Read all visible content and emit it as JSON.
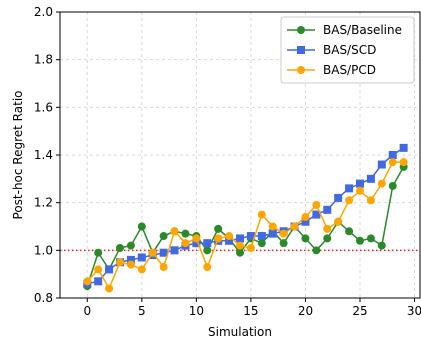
{
  "chart_data": {
    "type": "line",
    "xlabel": "Simulation",
    "ylabel": "Post-hoc Regret Ratio",
    "xlim": [
      -2.5,
      30.5
    ],
    "ylim": [
      0.8,
      2.0
    ],
    "xticks": [
      0,
      5,
      10,
      15,
      20,
      25,
      30
    ],
    "yticks": [
      0.8,
      1.0,
      1.2,
      1.4,
      1.6,
      1.8,
      2.0
    ],
    "xtick_labels": [
      "0",
      "5",
      "10",
      "15",
      "20",
      "25",
      "30"
    ],
    "ytick_labels": [
      "0.8",
      "1.0",
      "1.2",
      "1.4",
      "1.6",
      "1.8",
      "2.0"
    ],
    "grid": true,
    "legend_position": "top-right",
    "reference_line": {
      "y": 1.0,
      "color": "#e8212f",
      "style": "dotted"
    },
    "x": [
      0,
      1,
      2,
      3,
      4,
      5,
      6,
      7,
      8,
      9,
      10,
      11,
      12,
      13,
      14,
      15,
      16,
      17,
      18,
      19,
      20,
      21,
      22,
      23,
      24,
      25,
      26,
      27,
      28,
      29
    ],
    "series": [
      {
        "name": "BAS/Baseline",
        "color": "#2a8a2a",
        "marker": "circle",
        "values": [
          0.85,
          0.99,
          0.92,
          1.01,
          1.02,
          1.1,
          0.99,
          1.06,
          1.08,
          1.07,
          1.06,
          1.0,
          1.09,
          1.05,
          0.99,
          1.05,
          1.03,
          1.08,
          1.03,
          1.1,
          1.05,
          1.0,
          1.05,
          1.12,
          1.08,
          1.04,
          1.05,
          1.02,
          1.27,
          1.35
        ]
      },
      {
        "name": "BAS/SCD",
        "color": "#4169e1",
        "marker": "square",
        "values": [
          0.86,
          0.87,
          0.92,
          0.95,
          0.96,
          0.97,
          0.98,
          0.99,
          1.0,
          1.02,
          1.03,
          1.03,
          1.04,
          1.04,
          1.05,
          1.06,
          1.06,
          1.07,
          1.08,
          1.1,
          1.12,
          1.15,
          1.17,
          1.22,
          1.26,
          1.28,
          1.3,
          1.36,
          1.4,
          1.43
        ]
      },
      {
        "name": "BAS/PCD",
        "color": "#ffa500",
        "marker": "circle",
        "values": [
          0.87,
          0.92,
          0.84,
          0.95,
          0.94,
          0.92,
          0.99,
          0.93,
          1.08,
          1.03,
          1.05,
          0.93,
          1.05,
          1.06,
          1.02,
          1.01,
          1.15,
          1.1,
          1.07,
          1.1,
          1.14,
          1.19,
          1.09,
          1.12,
          1.21,
          1.25,
          1.21,
          1.28,
          1.37,
          1.37
        ]
      }
    ]
  }
}
